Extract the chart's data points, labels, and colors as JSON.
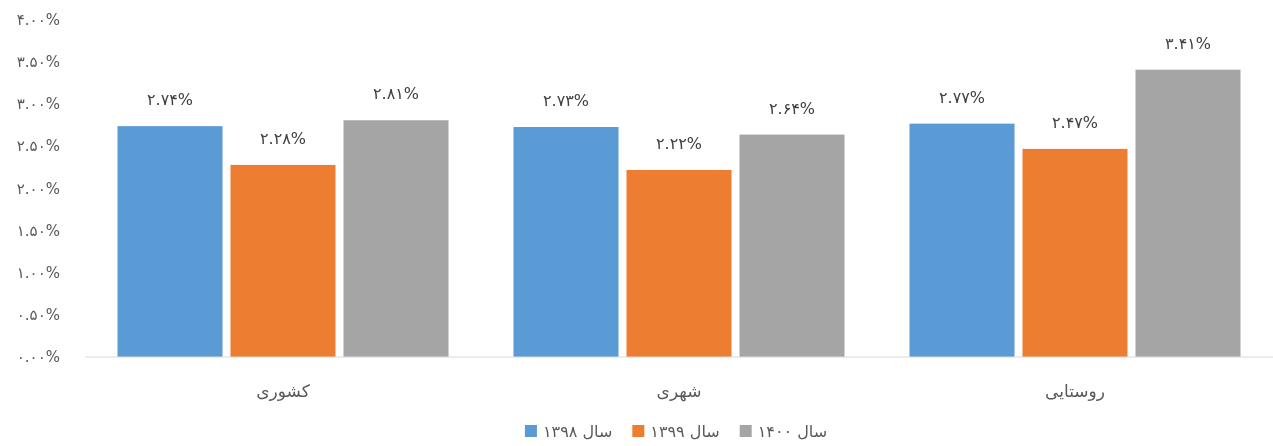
{
  "chart_data": {
    "type": "bar",
    "categories": [
      "کشوری",
      "شهری",
      "روستایی"
    ],
    "series": [
      {
        "name": "سال ۱۳۹۸",
        "color": "#5b9bd5",
        "values": [
          2.74,
          2.73,
          2.77
        ],
        "value_labels": [
          "۲.۷۴%",
          "۲.۷۳%",
          "۲.۷۷%"
        ]
      },
      {
        "name": "سال ۱۳۹۹",
        "color": "#ed7d31",
        "values": [
          2.28,
          2.22,
          2.47
        ],
        "value_labels": [
          "۲.۲۸%",
          "۲.۲۲%",
          "۲.۴۷%"
        ]
      },
      {
        "name": "سال ۱۴۰۰",
        "color": "#a5a5a5",
        "values": [
          2.81,
          2.64,
          3.41
        ],
        "value_labels": [
          "۲.۸۱%",
          "۲.۶۴%",
          "۳.۴۱%"
        ]
      }
    ],
    "ylim": [
      0,
      4
    ],
    "yticks": [
      {
        "value": 0,
        "label": "۰.۰۰%"
      },
      {
        "value": 0.5,
        "label": "۰.۵۰%"
      },
      {
        "value": 1,
        "label": "۱.۰۰%"
      },
      {
        "value": 1.5,
        "label": "۱.۵۰%"
      },
      {
        "value": 2,
        "label": "۲.۰۰%"
      },
      {
        "value": 2.5,
        "label": "۲.۵۰%"
      },
      {
        "value": 3,
        "label": "۳.۰۰%"
      },
      {
        "value": 3.5,
        "label": "۳.۵۰%"
      },
      {
        "value": 4,
        "label": "۴.۰۰%"
      }
    ],
    "legend": "bottom"
  }
}
